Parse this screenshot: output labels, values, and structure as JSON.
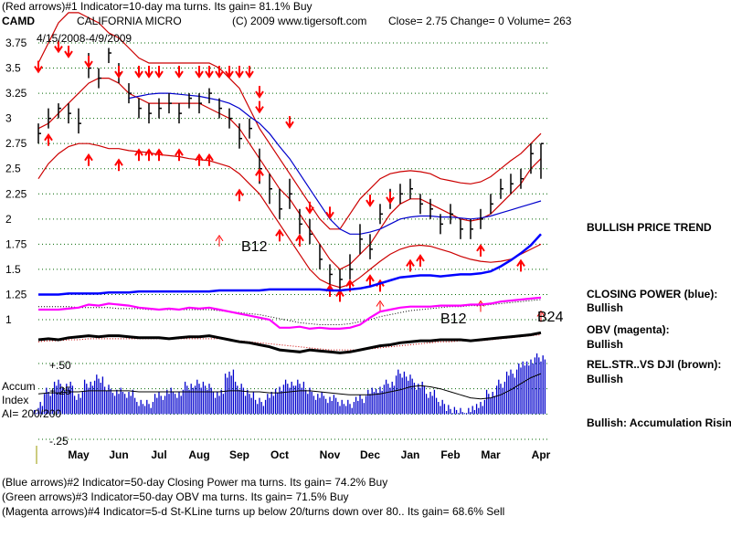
{
  "header": {
    "line1": "(Red arrows)#1 Indicator=10-day ma turns.  Its gain= 81.1% Buy",
    "ticker": "CAMD",
    "company": "CALIFORNIA MICRO",
    "copyright": "(C) 2009 www.tigersoft.com",
    "close_label": "Close=  2.75  Change= 0  Volume= 263",
    "date_range": "4/15/2008-4/9/2009"
  },
  "right_labels": {
    "trend": "BULLISH PRICE TREND",
    "cp_title": "CLOSING POWER (blue):",
    "cp_value": "Bullish",
    "obv_title": "OBV (magenta):",
    "obv_value": "Bullish",
    "rs_title": "REL.STR..VS DJI (brown):",
    "rs_value": "Bullish",
    "accum": "Bullish: Accumulation Rising"
  },
  "footer": {
    "line1": "(Blue arrows)#2 Indicator=50-day Closing Power ma turns.  Its gain= 74.2% Buy",
    "line2": "(Green arrows)#3 Indicator=50-day OBV ma turns.  Its gain= 71.5% Buy",
    "line3": "(Magenta arrows)#4 Indicator=5-d St-KLine turns up below 20/turns down over 80.. Its gain= 68.6% Sell"
  },
  "accum_panel": {
    "label1": "Accum",
    "label2": "Index",
    "label3": "AI= 200/200",
    "tick_050": "+.50",
    "tick_025": "+.25",
    "tick_neg025": "-.25"
  },
  "annotations": {
    "b12_price": "B12",
    "b12_indicator": "B12",
    "b24": "B24"
  },
  "colors": {
    "price": "#000000",
    "ma_red": "#cc0000",
    "ma_blue": "#0000cc",
    "closing_power": "#0000ff",
    "obv": "#ff00ff",
    "relstr": "#000000",
    "accum_bars": "#0000cc",
    "arrows": "#ff0000",
    "grid": "#006600"
  },
  "chart_data": {
    "type": "line",
    "title": "CALIFORNIA MICRO",
    "xlabel": "",
    "ylabel": "",
    "ylim": [
      1.0,
      3.75
    ],
    "yticks": [
      "3.75",
      "3.5",
      "3.25",
      "3",
      "2.75",
      "2.5",
      "2.25",
      "2",
      "1.75",
      "1.5",
      "1.25",
      "1"
    ],
    "ytick_values": [
      3.75,
      3.5,
      3.25,
      3.0,
      2.75,
      2.5,
      2.25,
      2.0,
      1.75,
      1.5,
      1.25,
      1.0
    ],
    "months": [
      "May",
      "Jun",
      "Jul",
      "Aug",
      "Sep",
      "Oct",
      "Nov",
      "Dec",
      "Jan",
      "Feb",
      "Mar",
      "Apr"
    ],
    "x": [
      0,
      1,
      2,
      3,
      4,
      5,
      6,
      7,
      8,
      9,
      10,
      11,
      12,
      13,
      14,
      15,
      16,
      17,
      18,
      19,
      20,
      21,
      22,
      23,
      24,
      25,
      26,
      27,
      28,
      29,
      30,
      31,
      32,
      33,
      34,
      35,
      36,
      37,
      38,
      39,
      40,
      41,
      42,
      43,
      44,
      45,
      46,
      47,
      48,
      49,
      50
    ],
    "x_label_index": [
      4,
      8,
      12,
      16,
      20,
      24,
      29,
      33,
      37,
      41,
      45,
      50
    ],
    "price_close": [
      2.85,
      3.0,
      3.1,
      3.05,
      2.95,
      3.5,
      3.4,
      3.65,
      3.45,
      3.25,
      3.1,
      3.05,
      3.1,
      3.15,
      3.05,
      3.2,
      3.15,
      3.25,
      3.1,
      3.0,
      2.8,
      2.9,
      2.5,
      2.3,
      2.1,
      2.25,
      1.95,
      1.85,
      1.6,
      1.45,
      1.4,
      1.5,
      1.8,
      1.7,
      2.05,
      2.2,
      2.25,
      2.3,
      2.15,
      2.1,
      1.95,
      2.05,
      1.9,
      1.9,
      2.0,
      2.15,
      2.3,
      2.35,
      2.4,
      2.65,
      2.75
    ],
    "price_high": [
      2.95,
      3.1,
      3.15,
      3.15,
      3.1,
      3.65,
      3.5,
      3.7,
      3.55,
      3.35,
      3.2,
      3.15,
      3.2,
      3.25,
      3.15,
      3.25,
      3.25,
      3.3,
      3.2,
      3.1,
      2.95,
      3.0,
      2.7,
      2.45,
      2.3,
      2.4,
      2.1,
      2.0,
      1.75,
      1.55,
      1.5,
      1.65,
      1.95,
      1.85,
      2.15,
      2.3,
      2.35,
      2.4,
      2.25,
      2.2,
      2.05,
      2.15,
      2.0,
      2.0,
      2.1,
      2.25,
      2.4,
      2.45,
      2.5,
      2.75,
      2.75
    ],
    "price_low": [
      2.75,
      2.9,
      3.0,
      2.95,
      2.85,
      3.4,
      3.3,
      3.55,
      3.35,
      3.15,
      3.0,
      2.95,
      3.0,
      3.05,
      2.95,
      3.1,
      3.05,
      3.15,
      3.0,
      2.9,
      2.7,
      2.8,
      2.35,
      2.15,
      2.0,
      2.1,
      1.85,
      1.75,
      1.5,
      1.35,
      1.3,
      1.4,
      1.65,
      1.6,
      1.95,
      2.1,
      2.15,
      2.2,
      2.05,
      2.0,
      1.85,
      1.95,
      1.8,
      1.8,
      1.9,
      2.05,
      2.2,
      2.25,
      2.3,
      2.45,
      2.4
    ],
    "ma_red": [
      2.9,
      2.95,
      3.05,
      3.15,
      3.25,
      3.35,
      3.4,
      3.4,
      3.35,
      3.25,
      3.2,
      3.15,
      3.15,
      3.15,
      3.15,
      3.15,
      3.15,
      3.1,
      3.05,
      3.0,
      2.9,
      2.75,
      2.6,
      2.45,
      2.3,
      2.2,
      2.05,
      1.9,
      1.75,
      1.6,
      1.5,
      1.55,
      1.65,
      1.75,
      1.9,
      2.05,
      2.15,
      2.2,
      2.2,
      2.15,
      2.1,
      2.05,
      2.0,
      1.98,
      2.0,
      2.05,
      2.15,
      2.25,
      2.35,
      2.5,
      2.6
    ],
    "ma_blue": [
      null,
      null,
      null,
      null,
      null,
      null,
      null,
      null,
      null,
      3.2,
      3.22,
      3.24,
      3.25,
      3.25,
      3.24,
      3.23,
      3.22,
      3.2,
      3.18,
      3.15,
      3.1,
      3.02,
      2.95,
      2.85,
      2.72,
      2.6,
      2.45,
      2.3,
      2.15,
      2.0,
      1.9,
      1.85,
      1.85,
      1.87,
      1.9,
      1.95,
      2.0,
      2.02,
      2.03,
      2.03,
      2.02,
      2.02,
      2.01,
      2.0,
      2.01,
      2.03,
      2.06,
      2.09,
      2.12,
      2.15,
      2.18
    ],
    "band_upper": [
      3.55,
      3.75,
      3.95,
      4.05,
      4.05,
      4.0,
      3.95,
      3.85,
      3.8,
      3.7,
      3.6,
      3.55,
      3.55,
      3.55,
      3.55,
      3.55,
      3.55,
      3.55,
      3.5,
      3.4,
      3.3,
      3.1,
      2.9,
      2.75,
      2.6,
      2.45,
      2.3,
      2.15,
      2.0,
      1.9,
      1.9,
      2.05,
      2.2,
      2.3,
      2.4,
      2.45,
      2.47,
      2.48,
      2.47,
      2.45,
      2.4,
      2.38,
      2.36,
      2.35,
      2.37,
      2.42,
      2.5,
      2.58,
      2.65,
      2.75,
      2.85
    ],
    "band_lower": [
      2.4,
      2.55,
      2.65,
      2.72,
      2.75,
      2.75,
      2.73,
      2.7,
      2.7,
      2.68,
      2.67,
      2.66,
      2.64,
      2.63,
      2.62,
      2.6,
      2.59,
      2.58,
      2.55,
      2.52,
      2.45,
      2.35,
      2.25,
      2.1,
      1.95,
      1.8,
      1.65,
      1.5,
      1.4,
      1.35,
      1.32,
      1.35,
      1.42,
      1.5,
      1.58,
      1.65,
      1.7,
      1.73,
      1.74,
      1.73,
      1.7,
      1.67,
      1.63,
      1.6,
      1.58,
      1.57,
      1.58,
      1.6,
      1.65,
      1.7,
      1.75
    ],
    "closing_power": [
      1.25,
      1.25,
      1.25,
      1.26,
      1.26,
      1.26,
      1.26,
      1.27,
      1.27,
      1.27,
      1.28,
      1.28,
      1.28,
      1.28,
      1.28,
      1.28,
      1.28,
      1.28,
      1.29,
      1.29,
      1.29,
      1.29,
      1.29,
      1.3,
      1.3,
      1.3,
      1.3,
      1.3,
      1.3,
      1.29,
      1.29,
      1.3,
      1.31,
      1.33,
      1.36,
      1.39,
      1.42,
      1.43,
      1.44,
      1.44,
      1.43,
      1.44,
      1.45,
      1.45,
      1.46,
      1.48,
      1.53,
      1.59,
      1.66,
      1.74,
      1.85
    ],
    "obv": [
      1.1,
      1.1,
      1.1,
      1.11,
      1.12,
      1.15,
      1.14,
      1.16,
      1.15,
      1.14,
      1.12,
      1.11,
      1.1,
      1.11,
      1.1,
      1.12,
      1.11,
      1.12,
      1.1,
      1.08,
      1.06,
      1.04,
      1.02,
      1.0,
      0.92,
      0.92,
      0.93,
      0.91,
      0.92,
      0.91,
      0.91,
      0.92,
      0.95,
      1.02,
      1.08,
      1.1,
      1.12,
      1.13,
      1.13,
      1.13,
      1.14,
      1.14,
      1.14,
      1.15,
      1.15,
      1.16,
      1.18,
      1.19,
      1.2,
      1.21,
      1.22
    ],
    "obv_ma": [
      1.13,
      1.13,
      1.13,
      1.13,
      1.12,
      1.12,
      1.12,
      1.12,
      1.11,
      1.11,
      1.11,
      1.1,
      1.1,
      1.1,
      1.1,
      1.1,
      1.1,
      1.1,
      1.09,
      1.08,
      1.07,
      1.06,
      1.05,
      1.03,
      1.01,
      0.99,
      0.97,
      0.96,
      0.95,
      0.95,
      0.95,
      0.96,
      0.98,
      1.0,
      1.03,
      1.05,
      1.07,
      1.09,
      1.1,
      1.11,
      1.12,
      1.13,
      1.13,
      1.14,
      1.14,
      1.15,
      1.16,
      1.17,
      1.18,
      1.19,
      1.2
    ],
    "relstr": [
      0.8,
      0.81,
      0.8,
      0.82,
      0.83,
      0.84,
      0.83,
      0.84,
      0.84,
      0.83,
      0.82,
      0.82,
      0.82,
      0.81,
      0.82,
      0.83,
      0.83,
      0.84,
      0.82,
      0.8,
      0.78,
      0.77,
      0.75,
      0.73,
      0.7,
      0.69,
      0.68,
      0.7,
      0.69,
      0.68,
      0.67,
      0.68,
      0.7,
      0.72,
      0.74,
      0.75,
      0.77,
      0.78,
      0.79,
      0.79,
      0.8,
      0.8,
      0.8,
      0.79,
      0.8,
      0.81,
      0.82,
      0.83,
      0.84,
      0.85,
      0.87
    ],
    "relstr_ma": [
      0.78,
      0.79,
      0.79,
      0.8,
      0.8,
      0.81,
      0.81,
      0.81,
      0.81,
      0.81,
      0.81,
      0.81,
      0.81,
      0.81,
      0.81,
      0.81,
      0.81,
      0.81,
      0.81,
      0.8,
      0.79,
      0.78,
      0.77,
      0.76,
      0.75,
      0.74,
      0.73,
      0.72,
      0.71,
      0.7,
      0.7,
      0.7,
      0.7,
      0.71,
      0.72,
      0.73,
      0.74,
      0.75,
      0.76,
      0.77,
      0.78,
      0.78,
      0.79,
      0.79,
      0.79,
      0.8,
      0.81,
      0.82,
      0.83,
      0.84,
      0.85
    ],
    "accum_index": [
      0.1,
      0.22,
      0.3,
      0.28,
      0.18,
      0.3,
      0.35,
      0.25,
      0.22,
      0.2,
      0.12,
      0.1,
      0.18,
      0.22,
      0.2,
      0.28,
      0.3,
      0.26,
      0.2,
      0.4,
      0.28,
      0.2,
      0.12,
      0.18,
      0.25,
      0.3,
      0.3,
      0.22,
      0.18,
      0.15,
      0.12,
      0.1,
      0.15,
      0.22,
      0.25,
      0.3,
      0.4,
      0.35,
      0.28,
      0.2,
      0.12,
      0.05,
      0.02,
      0.04,
      0.1,
      0.2,
      0.3,
      0.4,
      0.48,
      0.52,
      0.56
    ],
    "accum_ma": [
      0.2,
      0.21,
      0.21,
      0.22,
      0.22,
      0.23,
      0.23,
      0.23,
      0.23,
      0.23,
      0.22,
      0.22,
      0.22,
      0.22,
      0.22,
      0.22,
      0.22,
      0.22,
      0.22,
      0.23,
      0.23,
      0.22,
      0.22,
      0.21,
      0.21,
      0.22,
      0.23,
      0.23,
      0.22,
      0.21,
      0.2,
      0.19,
      0.19,
      0.19,
      0.2,
      0.22,
      0.24,
      0.27,
      0.28,
      0.27,
      0.25,
      0.22,
      0.19,
      0.16,
      0.15,
      0.16,
      0.19,
      0.24,
      0.3,
      0.36,
      0.4
    ],
    "accum_ylim": [
      -0.25,
      0.6
    ],
    "down_arrows": [
      [
        0,
        3.5
      ],
      [
        2,
        3.7
      ],
      [
        3,
        3.65
      ],
      [
        5,
        3.55
      ],
      [
        8,
        3.45
      ],
      [
        10,
        3.45
      ],
      [
        11,
        3.45
      ],
      [
        12,
        3.45
      ],
      [
        14,
        3.45
      ],
      [
        16,
        3.45
      ],
      [
        17,
        3.45
      ],
      [
        18,
        3.45
      ],
      [
        19,
        3.45
      ],
      [
        20,
        3.45
      ],
      [
        21,
        3.45
      ],
      [
        22,
        3.25
      ],
      [
        22,
        3.1
      ],
      [
        25,
        2.95
      ],
      [
        27,
        2.1
      ],
      [
        29,
        2.05
      ],
      [
        33,
        2.17
      ],
      [
        35,
        2.2
      ]
    ],
    "up_arrows": [
      [
        1,
        2.8
      ],
      [
        5,
        2.6
      ],
      [
        8,
        2.55
      ],
      [
        10,
        2.65
      ],
      [
        11,
        2.65
      ],
      [
        12,
        2.65
      ],
      [
        14,
        2.65
      ],
      [
        16,
        2.6
      ],
      [
        17,
        2.6
      ],
      [
        20,
        2.25
      ],
      [
        22,
        2.45
      ],
      [
        22,
        2.45
      ],
      [
        24,
        1.85
      ],
      [
        26,
        1.8
      ],
      [
        29,
        1.3
      ],
      [
        30,
        1.25
      ],
      [
        31,
        1.35
      ],
      [
        33,
        1.4
      ],
      [
        34,
        1.35
      ],
      [
        37,
        1.55
      ],
      [
        38,
        1.6
      ],
      [
        44,
        1.7
      ],
      [
        48,
        1.55
      ]
    ],
    "outline_up_arrows": [
      [
        18,
        1.8
      ],
      [
        34,
        1.15
      ],
      [
        44,
        1.15
      ],
      [
        50,
        1.05
      ]
    ]
  }
}
